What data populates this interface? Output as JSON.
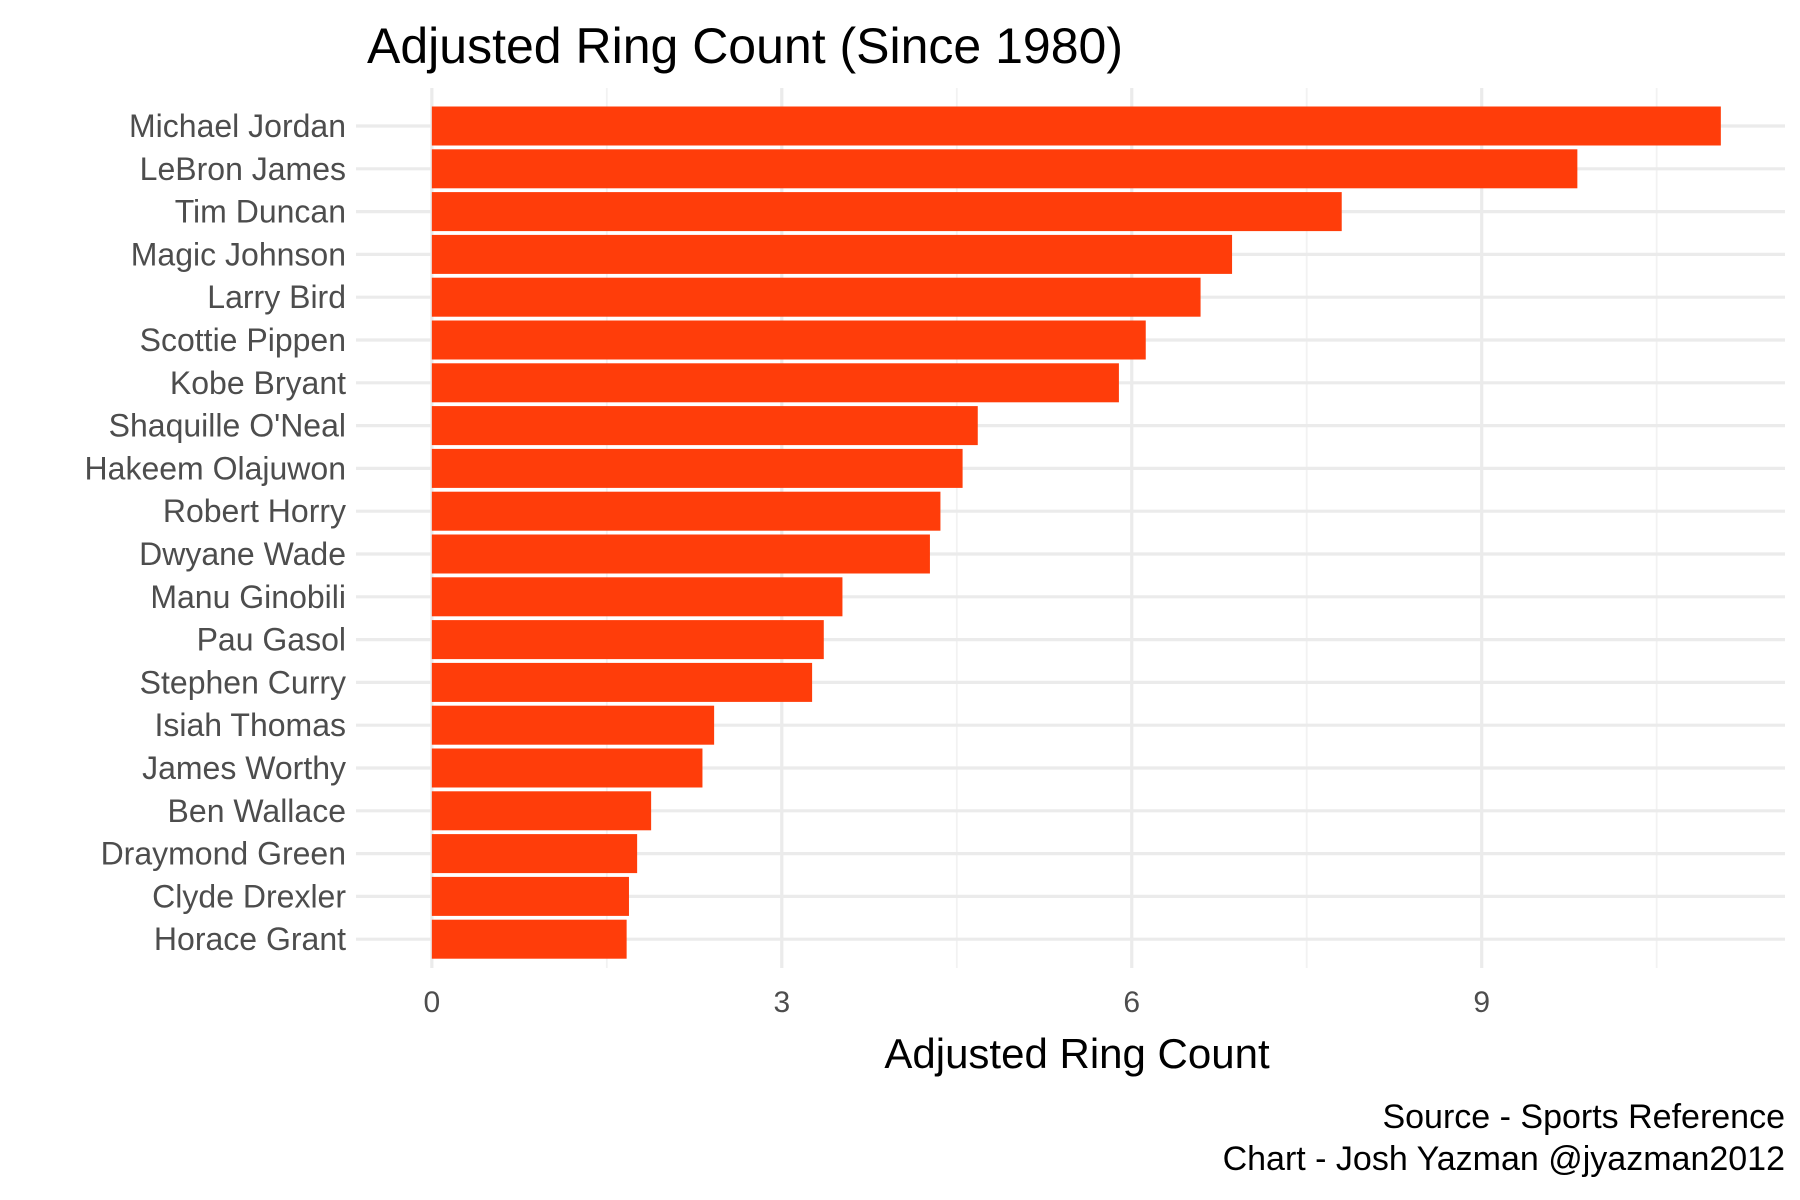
{
  "chart_data": {
    "type": "bar",
    "orientation": "horizontal",
    "title": "Adjusted Ring Count (Since 1980)",
    "xlabel": "Adjusted Ring Count",
    "ylabel": "",
    "categories": [
      "Michael Jordan",
      "LeBron James",
      "Tim Duncan",
      "Magic Johnson",
      "Larry Bird",
      "Scottie Pippen",
      "Kobe Bryant",
      "Shaquille O'Neal",
      "Hakeem Olajuwon",
      "Robert Horry",
      "Dwyane Wade",
      "Manu Ginobili",
      "Pau Gasol",
      "Stephen Curry",
      "Isiah Thomas",
      "James Worthy",
      "Ben Wallace",
      "Draymond Green",
      "Clyde Drexler",
      "Horace Grant"
    ],
    "values": [
      11.05,
      9.82,
      7.8,
      6.86,
      6.59,
      6.12,
      5.89,
      4.68,
      4.55,
      4.36,
      4.27,
      3.52,
      3.36,
      3.26,
      2.42,
      2.32,
      1.88,
      1.76,
      1.69,
      1.67
    ],
    "xlim": [
      -0.65,
      11.6
    ],
    "xticks": [
      0,
      3,
      6,
      9
    ],
    "xtick_labels": [
      "0",
      "3",
      "6",
      "9"
    ],
    "grid": true,
    "bar_color": "#ff3d0a",
    "caption": [
      "Source - Sports Reference",
      "Chart - Josh Yazman @jyazman2012"
    ]
  }
}
